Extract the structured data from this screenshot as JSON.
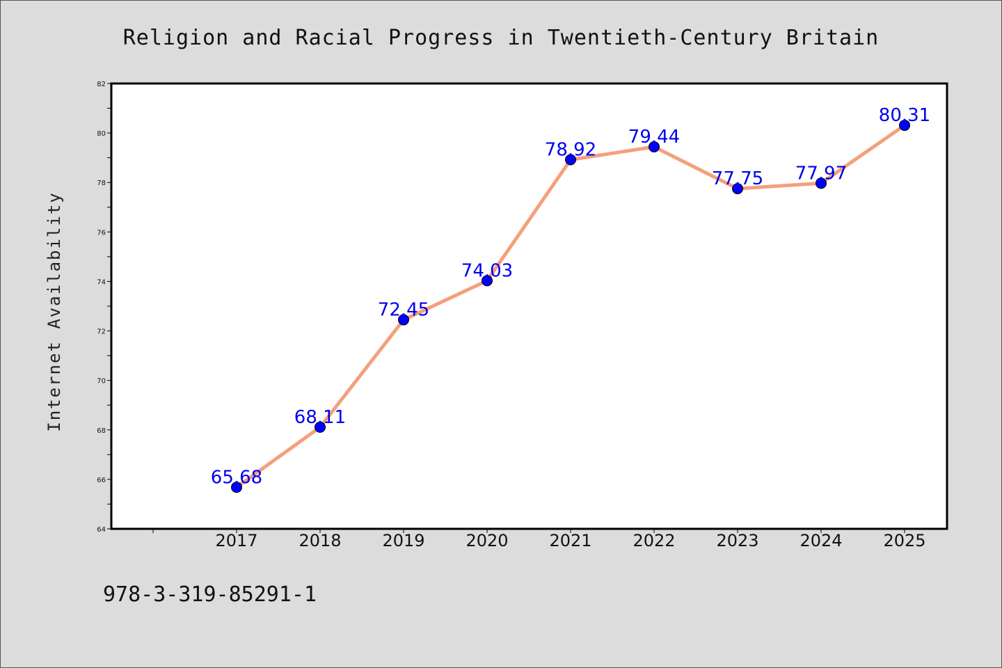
{
  "colors": {
    "background": "#dcdcdc",
    "plot_background": "#ffffff",
    "line": "#f4a07c",
    "marker": "#0000ff",
    "data_label": "#0000ee"
  },
  "chart_data": {
    "type": "line",
    "title": "Religion and Racial Progress in Twentieth-Century Britain",
    "xlabel": "",
    "ylabel": "Internet Availability",
    "x": [
      "2017",
      "2018",
      "2019",
      "2020",
      "2021",
      "2022",
      "2023",
      "2024",
      "2025"
    ],
    "series": [
      {
        "values": [
          65.68,
          68.11,
          72.45,
          74.03,
          78.92,
          79.44,
          77.75,
          77.97,
          80.31
        ],
        "labels": [
          "65.68",
          "68.11",
          "72.45",
          "74.03",
          "78.92",
          "79.44",
          "77.75",
          "77.97",
          "80.31"
        ]
      }
    ],
    "ylim": [
      64,
      82
    ],
    "yticks": [
      64,
      66,
      68,
      70,
      72,
      74,
      76,
      78,
      80,
      82
    ],
    "grid": false,
    "legend": "none"
  },
  "footer": {
    "isbn": "978-3-319-85291-1"
  }
}
